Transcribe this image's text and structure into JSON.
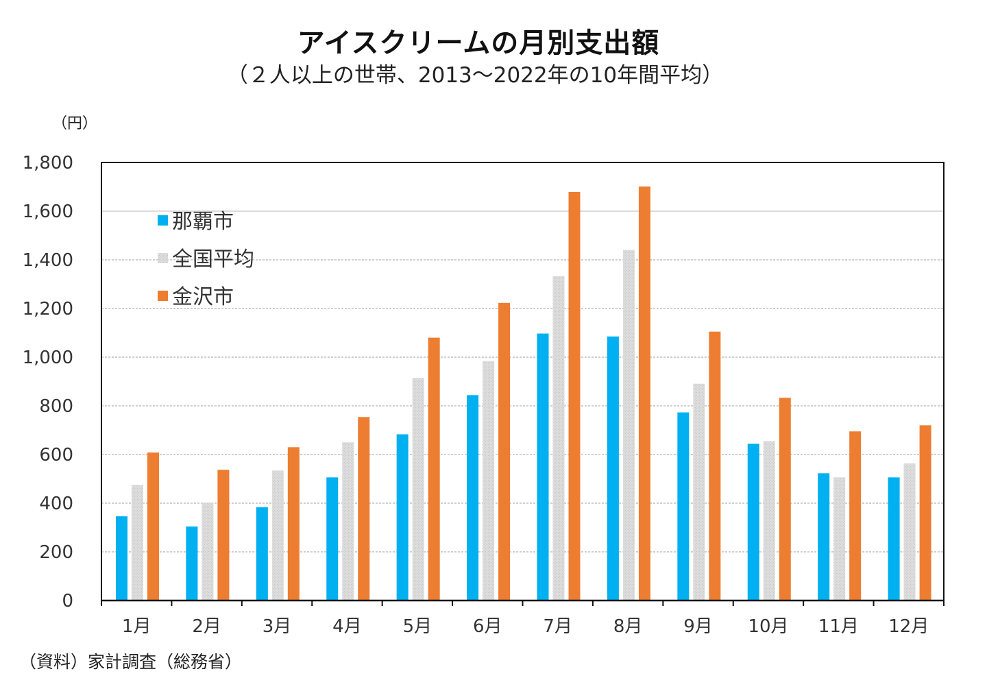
{
  "chart_data": {
    "type": "bar",
    "title": "アイスクリームの月別支出額",
    "subtitle": "（２人以上の世帯、2013～2022年の10年間平均）",
    "ylabel": "（円）",
    "xlabel": "",
    "source": "（資料）家計調査（総務省）",
    "ylim": [
      0,
      1800
    ],
    "yticks": [
      0,
      200,
      400,
      600,
      800,
      1000,
      1200,
      1400,
      1600,
      1800
    ],
    "ytick_labels": [
      "0",
      "200",
      "400",
      "600",
      "800",
      "1,000",
      "1,200",
      "1,400",
      "1,600",
      "1,800"
    ],
    "grid": true,
    "legend_position": "top-left",
    "categories": [
      "1月",
      "2月",
      "3月",
      "4月",
      "5月",
      "6月",
      "7月",
      "8月",
      "9月",
      "10月",
      "11月",
      "12月"
    ],
    "series": [
      {
        "name": "那覇市",
        "color": "#00b0f0",
        "pattern": "solid",
        "values": [
          346,
          304,
          383,
          506,
          683,
          844,
          1097,
          1085,
          773,
          644,
          523,
          506
        ]
      },
      {
        "name": "全国平均",
        "color": "#d9d9d9",
        "pattern": "dotted",
        "values": [
          475,
          402,
          534,
          650,
          914,
          984,
          1333,
          1440,
          891,
          655,
          506,
          563
        ]
      },
      {
        "name": "金沢市",
        "color": "#ed7d31",
        "pattern": "solid",
        "values": [
          608,
          537,
          630,
          754,
          1080,
          1223,
          1679,
          1701,
          1105,
          833,
          695,
          720
        ]
      }
    ]
  }
}
